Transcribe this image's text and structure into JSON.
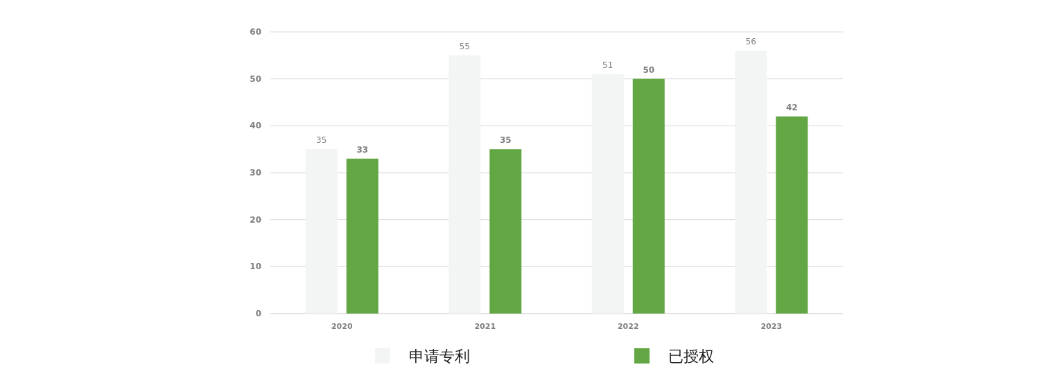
{
  "chart_data": {
    "type": "bar",
    "categories": [
      "2020",
      "2021",
      "2022",
      "2023"
    ],
    "series": [
      {
        "name": "申请专利",
        "color": "#f2f5f4",
        "values": [
          35,
          55,
          51,
          56
        ]
      },
      {
        "name": "已授权",
        "color": "#62a744",
        "values": [
          33,
          35,
          50,
          42
        ]
      }
    ],
    "ylim": [
      0,
      60
    ],
    "yticks": [
      0,
      10,
      20,
      30,
      40,
      50,
      60
    ],
    "grid": "y",
    "legend": "bottom",
    "data_labels": true
  }
}
